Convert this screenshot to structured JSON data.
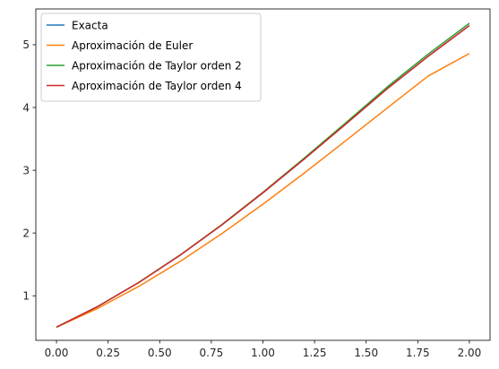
{
  "chart_data": {
    "type": "line",
    "title": "",
    "xlabel": "",
    "ylabel": "",
    "xlim": [
      -0.1,
      2.1
    ],
    "ylim": [
      0.29,
      5.57
    ],
    "grid": false,
    "legend_position": "top-left",
    "x_ticks": [
      {
        "value": 0.0,
        "label": "0.00"
      },
      {
        "value": 0.25,
        "label": "0.25"
      },
      {
        "value": 0.5,
        "label": "0.50"
      },
      {
        "value": 0.75,
        "label": "0.75"
      },
      {
        "value": 1.0,
        "label": "1.00"
      },
      {
        "value": 1.25,
        "label": "1.25"
      },
      {
        "value": 1.5,
        "label": "1.50"
      },
      {
        "value": 1.75,
        "label": "1.75"
      },
      {
        "value": 2.0,
        "label": "2.00"
      }
    ],
    "y_ticks": [
      {
        "value": 1,
        "label": "1"
      },
      {
        "value": 2,
        "label": "2"
      },
      {
        "value": 3,
        "label": "3"
      },
      {
        "value": 4,
        "label": "4"
      },
      {
        "value": 5,
        "label": "5"
      }
    ],
    "x": [
      0.0,
      0.2,
      0.4,
      0.6,
      0.8,
      1.0,
      1.2,
      1.4,
      1.6,
      1.8,
      2.0
    ],
    "series": [
      {
        "name": "Exacta",
        "color": "#1f77b4",
        "values": [
          0.5,
          0.829,
          1.214,
          1.649,
          2.127,
          2.641,
          3.179,
          3.732,
          4.294,
          4.815,
          5.305
        ]
      },
      {
        "name": "Aproximación de Euler",
        "color": "#ff7f0e",
        "values": [
          0.5,
          0.8,
          1.152,
          1.55,
          1.988,
          2.459,
          2.955,
          3.468,
          3.987,
          4.501,
          4.86
        ]
      },
      {
        "name": "Aproximación de Taylor orden 2",
        "color": "#2ca02c",
        "values": [
          0.5,
          0.83,
          1.216,
          1.652,
          2.132,
          2.648,
          3.192,
          3.753,
          4.321,
          4.85,
          5.342
        ]
      },
      {
        "name": "Aproximación de Taylor orden 4",
        "color": "#d62728",
        "values": [
          0.5,
          0.829,
          1.214,
          1.649,
          2.127,
          2.641,
          3.179,
          3.732,
          4.294,
          4.815,
          5.305
        ]
      }
    ]
  }
}
